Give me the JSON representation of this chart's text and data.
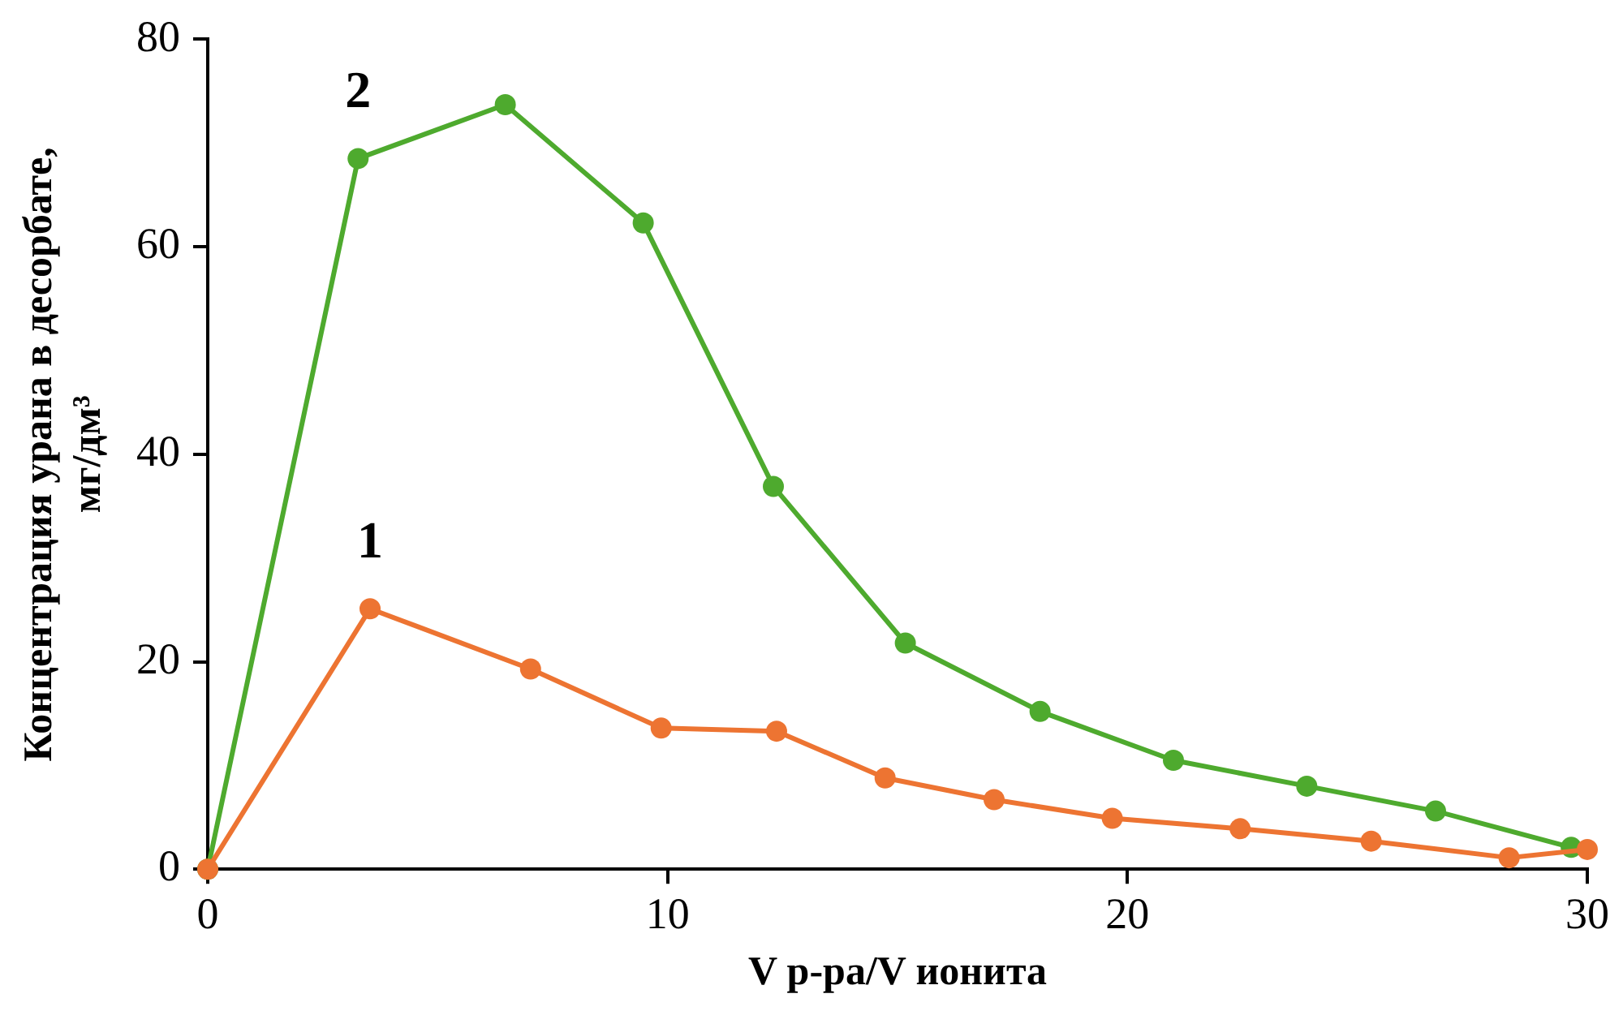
{
  "chart_data": {
    "type": "line",
    "xlabel": "V р-ра/V ионита",
    "ylabel": "Концентрация урана в десорбате, мг/дм³",
    "xlim": [
      0,
      30
    ],
    "xticks": [
      0,
      10,
      20,
      30
    ],
    "ylim": [
      0,
      80
    ],
    "yticks": [
      0,
      20,
      40,
      60,
      80
    ],
    "grid": false,
    "legend": false,
    "marker": "circle",
    "line_style": "solid",
    "series": [
      {
        "name": "1",
        "color": "#ed7432",
        "x": [
          0,
          3.53,
          7.02,
          9.86,
          12.37,
          14.73,
          17.1,
          19.67,
          22.45,
          25.3,
          28.3,
          30
        ],
        "values": [
          0,
          25.1,
          19.3,
          13.6,
          13.3,
          8.8,
          6.7,
          4.9,
          3.9,
          2.7,
          1.1,
          1.9
        ]
      },
      {
        "name": "2",
        "color": "#4eaa2e",
        "x": [
          0,
          3.27,
          6.47,
          9.47,
          12.3,
          15.17,
          18.1,
          21.0,
          23.9,
          26.7,
          29.65
        ],
        "values": [
          0,
          68.5,
          73.7,
          62.3,
          36.9,
          21.8,
          15.2,
          10.5,
          8.0,
          5.6,
          2.1
        ]
      }
    ]
  }
}
